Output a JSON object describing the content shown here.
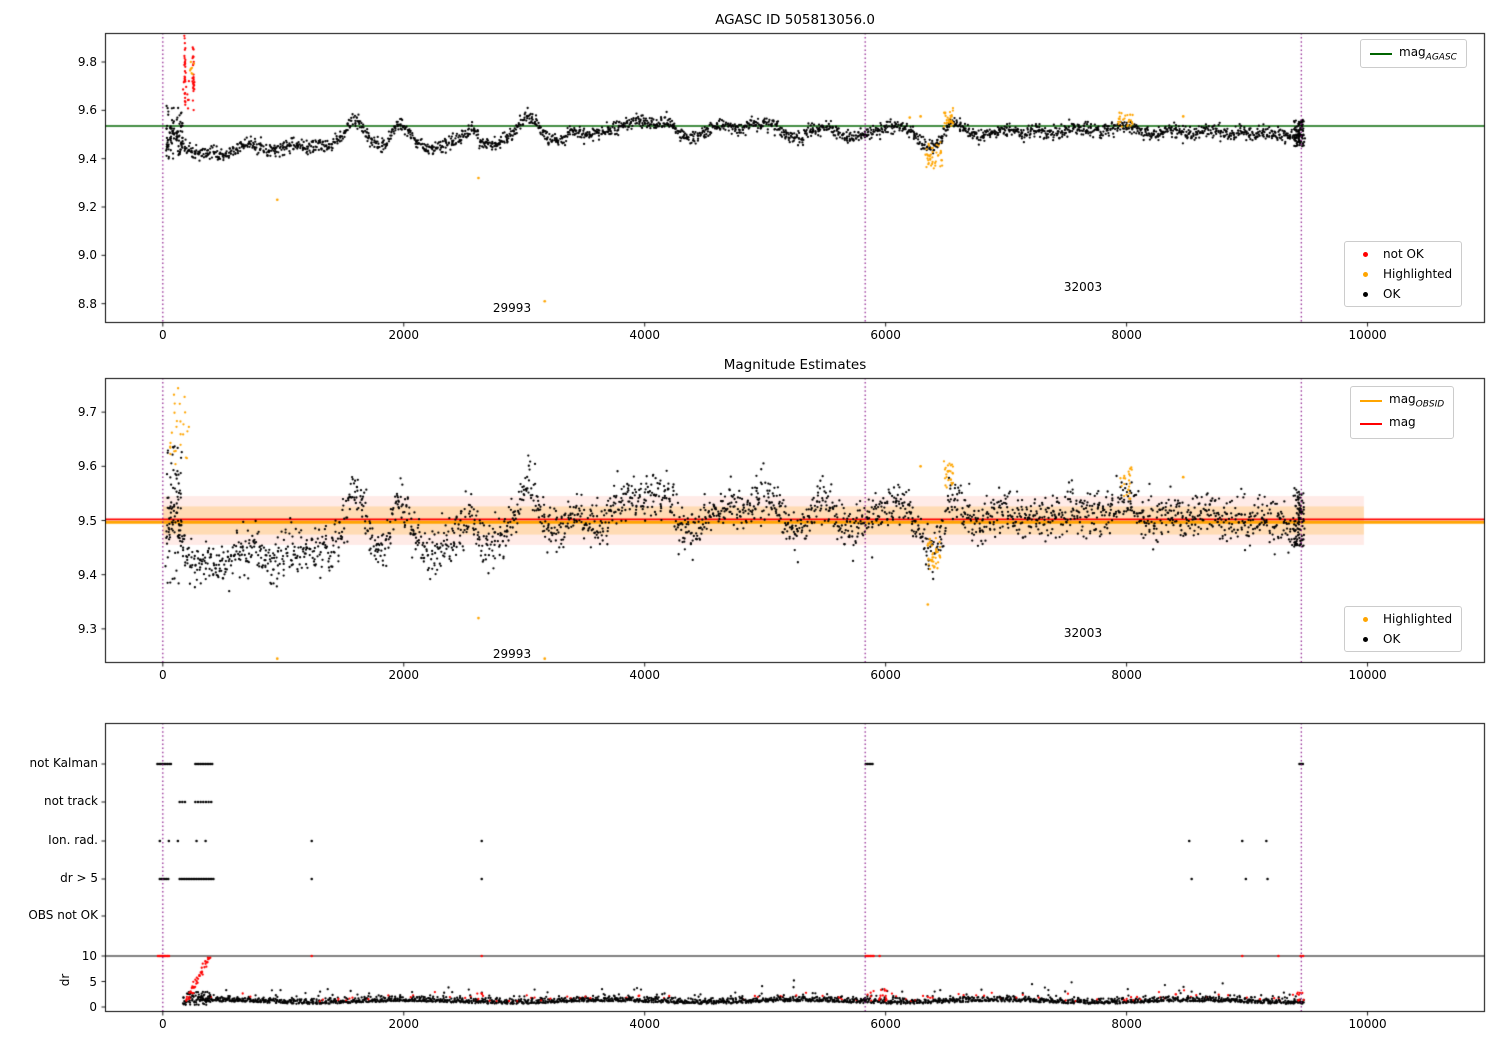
{
  "figure": {
    "background": "#ffffff"
  },
  "colors": {
    "ok": "#000000",
    "not_ok": "#ff0000",
    "highlighted": "#ffa500",
    "agasc_line": "#006400",
    "obsid_line": "#ffa500",
    "mag_line": "#ff0000",
    "vline": "#800080",
    "axis": "#000000"
  },
  "shared": {
    "trend_profile": [
      [
        30,
        9.45
      ],
      [
        90,
        9.52
      ],
      [
        150,
        9.46
      ],
      [
        250,
        9.42
      ],
      [
        400,
        9.43
      ],
      [
        500,
        9.41
      ],
      [
        600,
        9.44
      ],
      [
        700,
        9.46
      ],
      [
        800,
        9.45
      ],
      [
        900,
        9.43
      ],
      [
        1000,
        9.44
      ],
      [
        1100,
        9.46
      ],
      [
        1200,
        9.44
      ],
      [
        1300,
        9.46
      ],
      [
        1400,
        9.45
      ],
      [
        1500,
        9.5
      ],
      [
        1570,
        9.56
      ],
      [
        1650,
        9.54
      ],
      [
        1720,
        9.48
      ],
      [
        1800,
        9.45
      ],
      [
        1870,
        9.47
      ],
      [
        1950,
        9.55
      ],
      [
        2030,
        9.52
      ],
      [
        2100,
        9.47
      ],
      [
        2200,
        9.44
      ],
      [
        2300,
        9.45
      ],
      [
        2400,
        9.47
      ],
      [
        2500,
        9.5
      ],
      [
        2570,
        9.52
      ],
      [
        2650,
        9.46
      ],
      [
        2750,
        9.46
      ],
      [
        2850,
        9.48
      ],
      [
        2950,
        9.53
      ],
      [
        3020,
        9.58
      ],
      [
        3100,
        9.55
      ],
      [
        3200,
        9.48
      ],
      [
        3300,
        9.48
      ],
      [
        3400,
        9.51
      ],
      [
        3500,
        9.5
      ],
      [
        3600,
        9.5
      ],
      [
        3700,
        9.52
      ],
      [
        3800,
        9.54
      ],
      [
        3900,
        9.55
      ],
      [
        4000,
        9.55
      ],
      [
        4100,
        9.54
      ],
      [
        4200,
        9.55
      ],
      [
        4300,
        9.5
      ],
      [
        4400,
        9.48
      ],
      [
        4500,
        9.51
      ],
      [
        4600,
        9.53
      ],
      [
        4700,
        9.54
      ],
      [
        4800,
        9.52
      ],
      [
        4900,
        9.54
      ],
      [
        5000,
        9.55
      ],
      [
        5100,
        9.53
      ],
      [
        5200,
        9.49
      ],
      [
        5300,
        9.49
      ],
      [
        5400,
        9.52
      ],
      [
        5500,
        9.54
      ],
      [
        5600,
        9.51
      ],
      [
        5700,
        9.48
      ],
      [
        5800,
        9.5
      ],
      [
        5900,
        9.51
      ],
      [
        6000,
        9.53
      ],
      [
        6100,
        9.54
      ],
      [
        6200,
        9.52
      ],
      [
        6300,
        9.47
      ],
      [
        6400,
        9.44
      ],
      [
        6470,
        9.49
      ],
      [
        6550,
        9.56
      ],
      [
        6650,
        9.52
      ],
      [
        6750,
        9.49
      ],
      [
        6850,
        9.5
      ],
      [
        6950,
        9.52
      ],
      [
        7050,
        9.52
      ],
      [
        7150,
        9.5
      ],
      [
        7250,
        9.52
      ],
      [
        7350,
        9.5
      ],
      [
        7450,
        9.51
      ],
      [
        7550,
        9.53
      ],
      [
        7650,
        9.52
      ],
      [
        7750,
        9.51
      ],
      [
        7850,
        9.52
      ],
      [
        7950,
        9.54
      ],
      [
        8050,
        9.53
      ],
      [
        8150,
        9.51
      ],
      [
        8250,
        9.5
      ],
      [
        8350,
        9.52
      ],
      [
        8450,
        9.51
      ],
      [
        8550,
        9.5
      ],
      [
        8650,
        9.52
      ],
      [
        8750,
        9.51
      ],
      [
        8850,
        9.5
      ],
      [
        8950,
        9.51
      ],
      [
        9050,
        9.5
      ],
      [
        9150,
        9.51
      ],
      [
        9250,
        9.5
      ],
      [
        9350,
        9.49
      ],
      [
        9450,
        9.5
      ]
    ]
  },
  "chart_data": [
    {
      "id": "agasc-mag-panel",
      "type": "scatter",
      "title": "AGASC ID 505813056.0",
      "xlim": [
        -480,
        10975
      ],
      "ylim": [
        8.72,
        9.92
      ],
      "xticks": [
        0,
        2000,
        4000,
        6000,
        8000,
        10000
      ],
      "yticks": [
        8.8,
        9.0,
        9.2,
        9.4,
        9.6,
        9.8
      ],
      "hlines": [
        {
          "value": 9.535,
          "color": "#006400",
          "lw": 1.5
        }
      ],
      "vlines": {
        "xs": [
          0,
          5830,
          9450
        ],
        "color": "#800080",
        "style": "dotted"
      },
      "annotations": [
        {
          "text": "29993",
          "x": 2900,
          "y": 8.79
        },
        {
          "text": "32003",
          "x": 7630,
          "y": 8.87
        }
      ],
      "legend_line": {
        "entries": [
          {
            "text": "mag",
            "sub": "AGASC",
            "color": "#006400"
          }
        ]
      },
      "legend_markers": {
        "entries": [
          {
            "label": "not OK",
            "color": "#ff0000"
          },
          {
            "label": "Highlighted",
            "color": "#ffa500"
          },
          {
            "label": "OK",
            "color": "#000000"
          }
        ]
      },
      "series": {
        "main": {
          "n": 2400,
          "x_range": [
            30,
            9470
          ],
          "noise": 0.014,
          "offset": 0
        },
        "start_cluster": {
          "n": 70,
          "x_range": [
            30,
            165
          ],
          "y_range": [
            9.4,
            9.62
          ]
        },
        "end_cluster": {
          "n": 80,
          "x_range": [
            9390,
            9472
          ],
          "y_range": [
            9.45,
            9.56
          ]
        },
        "not_ok": {
          "columns": [
            {
              "x": 184,
              "n": 26,
              "y_range": [
                9.63,
                9.91
              ]
            },
            {
              "x": 253,
              "n": 24,
              "y_range": [
                9.66,
                9.915
              ]
            }
          ],
          "scatter": {
            "n": 14,
            "x_range": [
              168,
              268
            ],
            "y_range": [
              9.6,
              9.74
            ]
          }
        },
        "highlighted_clusters": [
          {
            "n": 8,
            "x_range": [
              225,
              262
            ],
            "y_range": [
              9.74,
              9.88
            ]
          },
          {
            "n": 42,
            "x_range": [
              6330,
              6470
            ],
            "y_range": [
              9.36,
              9.47
            ]
          },
          {
            "n": 28,
            "x_range": [
              6480,
              6560
            ],
            "y_range": [
              9.53,
              9.61
            ]
          },
          {
            "n": 24,
            "x_range": [
              7930,
              8060
            ],
            "y_range": [
              9.53,
              9.59
            ]
          }
        ],
        "highlighted_points": [
          [
            950,
            9.23
          ],
          [
            2620,
            9.32
          ],
          [
            3170,
            8.81
          ],
          [
            6200,
            9.57
          ],
          [
            6290,
            9.575
          ],
          [
            8470,
            9.575
          ]
        ]
      }
    },
    {
      "id": "magnitude-estimates-panel",
      "type": "scatter",
      "title": "Magnitude Estimates",
      "xlim": [
        -480,
        10975
      ],
      "ylim": [
        9.237,
        9.763
      ],
      "xticks": [
        0,
        2000,
        4000,
        6000,
        8000,
        10000
      ],
      "yticks": [
        9.3,
        9.4,
        9.5,
        9.6,
        9.7
      ],
      "hlines": [
        {
          "value": 9.497,
          "color": "#ffa500",
          "lw": 3
        },
        {
          "value": 9.502,
          "color": "#ff0000",
          "lw": 1.6
        }
      ],
      "bands": [
        {
          "x_range": [
            0,
            9970
          ],
          "y_range": [
            9.455,
            9.545
          ],
          "color": "rgba(255,90,60,0.12)"
        },
        {
          "x_range": [
            0,
            9970
          ],
          "y_range": [
            9.474,
            9.526
          ],
          "color": "rgba(255,165,0,0.22)"
        }
      ],
      "vlines": {
        "xs": [
          0,
          5830,
          9450
        ],
        "color": "#800080",
        "style": "dotted"
      },
      "annotations": [
        {
          "text": "29993",
          "x": 2900,
          "y": 9.253
        },
        {
          "text": "32003",
          "x": 7630,
          "y": 9.268
        }
      ],
      "legend_line": {
        "entries": [
          {
            "text": "mag",
            "sub": "OBSID",
            "color": "#ffa500"
          },
          {
            "text": "mag",
            "sub": "",
            "color": "#ff0000"
          }
        ]
      },
      "legend_markers": {
        "entries": [
          {
            "label": "Highlighted",
            "color": "#ffa500"
          },
          {
            "label": "OK",
            "color": "#000000"
          }
        ]
      },
      "series": {
        "main": {
          "n": 2400,
          "x_range": [
            30,
            9470
          ],
          "noise": 0.021,
          "offset": -0.004
        },
        "start_cluster": {
          "n": 70,
          "x_range": [
            30,
            165
          ],
          "y_range": [
            9.38,
            9.64
          ]
        },
        "end_cluster": {
          "n": 80,
          "x_range": [
            9390,
            9472
          ],
          "y_range": [
            9.45,
            9.56
          ]
        },
        "highlighted_clusters": [
          {
            "n": 26,
            "x_range": [
              55,
              230
            ],
            "y_range": [
              9.6,
              9.755
            ]
          },
          {
            "n": 40,
            "x_range": [
              6340,
              6460
            ],
            "y_range": [
              9.41,
              9.47
            ]
          },
          {
            "n": 26,
            "x_range": [
              6480,
              6560
            ],
            "y_range": [
              9.55,
              9.61
            ]
          },
          {
            "n": 22,
            "x_range": [
              7930,
              8060
            ],
            "y_range": [
              9.54,
              9.6
            ]
          }
        ],
        "highlighted_points": [
          [
            950,
            9.245
          ],
          [
            2620,
            9.32
          ],
          [
            3170,
            9.245
          ],
          [
            6350,
            9.345
          ],
          [
            6290,
            9.6
          ],
          [
            8470,
            9.58
          ]
        ]
      }
    },
    {
      "id": "flags-dr-panel",
      "type": "scatter",
      "xlim": [
        -480,
        10975
      ],
      "xticks": [
        0,
        2000,
        4000,
        6000,
        8000,
        10000
      ],
      "vlines": {
        "xs": [
          0,
          5830,
          9450
        ],
        "color": "#800080",
        "style": "dotted"
      },
      "rows": [
        {
          "label": "not Kalman",
          "runs": [
            [
              -45,
              80
            ],
            [
              270,
              410
            ],
            [
              5835,
              5900
            ],
            [
              9435,
              9475
            ]
          ],
          "points": []
        },
        {
          "label": "not track",
          "runs": [],
          "points": [
            140,
            162,
            184,
            270,
            292,
            314,
            336,
            358,
            380,
            402
          ]
        },
        {
          "label": "Ion. rad.",
          "runs": [],
          "points": [
            -25,
            50,
            125,
            280,
            355,
            1236,
            2647,
            8520,
            8960,
            9160
          ]
        },
        {
          "label": "dr > 5",
          "runs": [
            [
              -25,
              55
            ],
            [
              140,
              430
            ]
          ],
          "points": [
            1236,
            2647,
            8540,
            8990,
            9170
          ]
        },
        {
          "label": "OBS not OK",
          "runs": [],
          "points": []
        }
      ],
      "dr": {
        "label": "dr",
        "ylim": [
          0,
          10
        ],
        "yticks": [
          0,
          5,
          10
        ],
        "limit_line": 10,
        "main": {
          "n": 2400,
          "x_range": [
            300,
            9470
          ],
          "base": 0.85,
          "spread": 0.55,
          "red_frac": 0.05
        },
        "ramp_black": {
          "n": 70,
          "x_range": [
            165,
            395
          ],
          "v_range": [
            0.4,
            3.0
          ]
        },
        "ramp_red": {
          "n": 48,
          "x_range": [
            195,
            392
          ],
          "v_start": 1.2,
          "v_end": 9.9
        },
        "red_at10": {
          "runs": [
            [
              -40,
              60
            ],
            [
              5835,
              5905
            ]
          ],
          "points": [
            1236,
            2647,
            5950,
            8960,
            9260,
            9445,
            9465
          ]
        },
        "red_clusters": [
          {
            "n": 16,
            "x_range": [
              5845,
              6060
            ],
            "v_range": [
              1.2,
              3.6
            ]
          },
          {
            "n": 8,
            "x_range": [
              9400,
              9470
            ],
            "v_range": [
              1.2,
              3.0
            ]
          },
          {
            "n": 6,
            "x_range": [
              2590,
              2660
            ],
            "v_range": [
              1.5,
              3.0
            ]
          }
        ]
      }
    }
  ]
}
